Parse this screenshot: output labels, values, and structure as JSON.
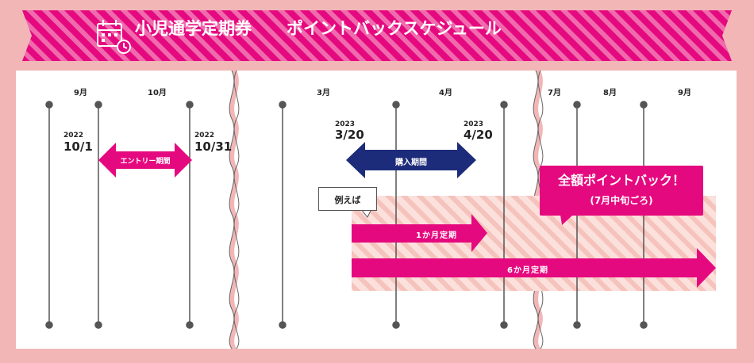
{
  "title": {
    "part1": "小児通学定期券",
    "part2": "ポイントバックスケジュール",
    "icon": "calendar-clock-icon"
  },
  "months": {
    "sep": "9月",
    "oct": "10月",
    "mar": "3月",
    "apr": "4月",
    "jul": "7月",
    "aug": "8月",
    "sep2": "9月"
  },
  "entry": {
    "start_year": "2022",
    "start_date": "10/1",
    "end_year": "2022",
    "end_date": "10/31",
    "label": "エントリー期間"
  },
  "purchase": {
    "start_year": "2023",
    "start_date": "3/20",
    "end_year": "2023",
    "end_date": "4/20",
    "label": "購入期間"
  },
  "example_label": "例えば",
  "pass_1month": "1か月定期",
  "pass_6month": "6か月定期",
  "pointback": {
    "line1": "全額ポイントバック！",
    "line2": "(7月中旬ごろ)"
  },
  "colors": {
    "magenta": "#e5097f",
    "navy": "#1d2c7a",
    "background_pink": "#f2b6b6",
    "banner_stripe": "#f274b4"
  }
}
